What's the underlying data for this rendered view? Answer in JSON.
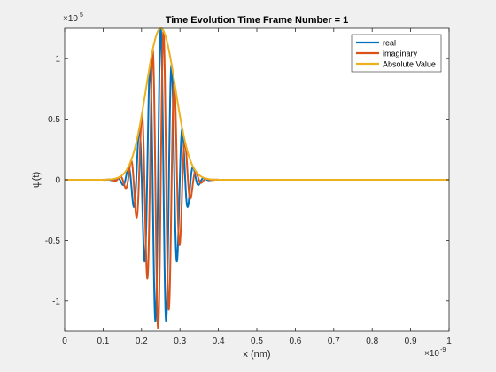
{
  "chart_data": {
    "type": "line",
    "title": "Time Evolution Time Frame Number = 1",
    "xlabel": "x (nm)",
    "ylabel": "ψ(t)",
    "x_exponent_label": "×10",
    "x_exponent": "-9",
    "y_exponent_label": "×10",
    "y_exponent": "5",
    "xlim": [
      0,
      1
    ],
    "ylim": [
      -1.25,
      1.25
    ],
    "x_ticks": [
      0,
      0.1,
      0.2,
      0.3,
      0.4,
      0.5,
      0.6,
      0.7,
      0.8,
      0.9,
      1
    ],
    "x_tick_labels": [
      "0",
      "0.1",
      "0.2",
      "0.3",
      "0.4",
      "0.5",
      "0.6",
      "0.7",
      "0.8",
      "0.9",
      "1"
    ],
    "y_ticks": [
      -1,
      -0.5,
      0,
      0.5,
      1
    ],
    "y_tick_labels": [
      "-1",
      "-0.5",
      "0",
      "0.5",
      "1"
    ],
    "grid": false,
    "legend_position": "top-right",
    "wave_packet": {
      "center": 0.25,
      "sigma": 0.038,
      "amplitude": 1.25,
      "wavenumber": 222
    },
    "series": [
      {
        "name": "real",
        "color": "#0072bd",
        "component": "real"
      },
      {
        "name": "imaginary",
        "color": "#d95319",
        "component": "imaginary"
      },
      {
        "name": "Absolute Value",
        "color": "#edb120",
        "component": "abs"
      }
    ]
  }
}
